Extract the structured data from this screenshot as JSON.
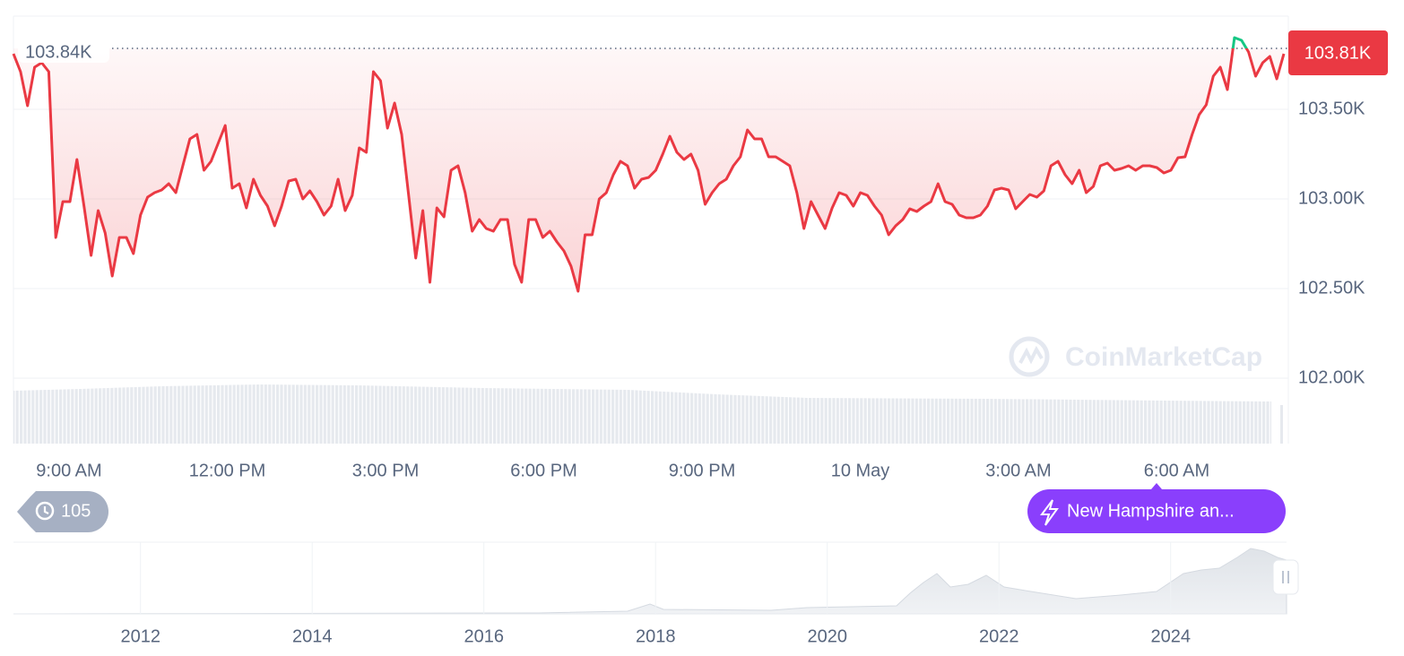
{
  "chart_data": {
    "type": "line",
    "color": "#ea3943",
    "up_color": "#16c784",
    "values": [
      103810,
      103710,
      103520,
      103735,
      103760,
      103710,
      102785,
      102985,
      102985,
      103220,
      102960,
      102685,
      102935,
      102810,
      102570,
      102785,
      102785,
      102695,
      102910,
      103010,
      103035,
      103050,
      103085,
      103035,
      103185,
      103335,
      103360,
      103160,
      103210,
      103310,
      103410,
      103060,
      103085,
      102950,
      103110,
      103020,
      102960,
      102850,
      102960,
      103100,
      103110,
      103000,
      103045,
      102985,
      102910,
      102960,
      103110,
      102935,
      103020,
      103285,
      103260,
      103710,
      103660,
      103395,
      103535,
      103360,
      103020,
      102670,
      102935,
      102535,
      102950,
      102900,
      103160,
      103185,
      103035,
      102820,
      102885,
      102835,
      102820,
      102885,
      102885,
      102635,
      102535,
      102885,
      102885,
      102785,
      102820,
      102760,
      102710,
      102625,
      102485,
      102800,
      102800,
      103000,
      103035,
      103135,
      103210,
      103185,
      103060,
      103110,
      103120,
      103160,
      103250,
      103350,
      103260,
      103220,
      103250,
      103160,
      102970,
      103035,
      103085,
      103110,
      103185,
      103235,
      103385,
      103335,
      103335,
      103235,
      103235,
      103210,
      103185,
      103035,
      102835,
      102985,
      102910,
      102835,
      102950,
      103035,
      103020,
      102960,
      103035,
      103020,
      102960,
      102910,
      102800,
      102850,
      102885,
      102945,
      102930,
      102960,
      102985,
      103085,
      102985,
      102970,
      102910,
      102895,
      102895,
      102910,
      102960,
      103050,
      103060,
      103050,
      102945,
      102985,
      103025,
      103010,
      103045,
      103185,
      103210,
      103135,
      103085,
      103160,
      103035,
      103070,
      103185,
      103200,
      103160,
      103170,
      103185,
      103160,
      103185,
      103185,
      103175,
      103145,
      103160,
      103230,
      103235,
      103360,
      103470,
      103525,
      103685,
      103735,
      103610,
      103900,
      103885,
      103820,
      103685,
      103760,
      103795,
      103670,
      103810
    ],
    "reference": {
      "value": 103840,
      "label": "103.84K"
    },
    "current": {
      "value": 103810,
      "label": "103.81K"
    },
    "ylim": [
      102000,
      104020
    ],
    "yticks": [
      {
        "value": 102000,
        "label": "102.00K"
      },
      {
        "value": 102500,
        "label": "102.50K"
      },
      {
        "value": 103000,
        "label": "103.00K"
      },
      {
        "value": 103500,
        "label": "103.50K"
      }
    ],
    "grid": true,
    "x_labels": [
      "9:00 AM",
      "12:00 PM",
      "3:00 PM",
      "6:00 PM",
      "9:00 PM",
      "10 May",
      "3:00 AM",
      "6:00 AM"
    ],
    "watermark": "CoinMarketCap",
    "history_count": "105",
    "news": "New Hampshire an...",
    "navigator": {
      "xlim": [
        2010.52,
        2025.35
      ],
      "xticks": [
        2012,
        2014,
        2016,
        2018,
        2020,
        2022,
        2024
      ]
    }
  }
}
